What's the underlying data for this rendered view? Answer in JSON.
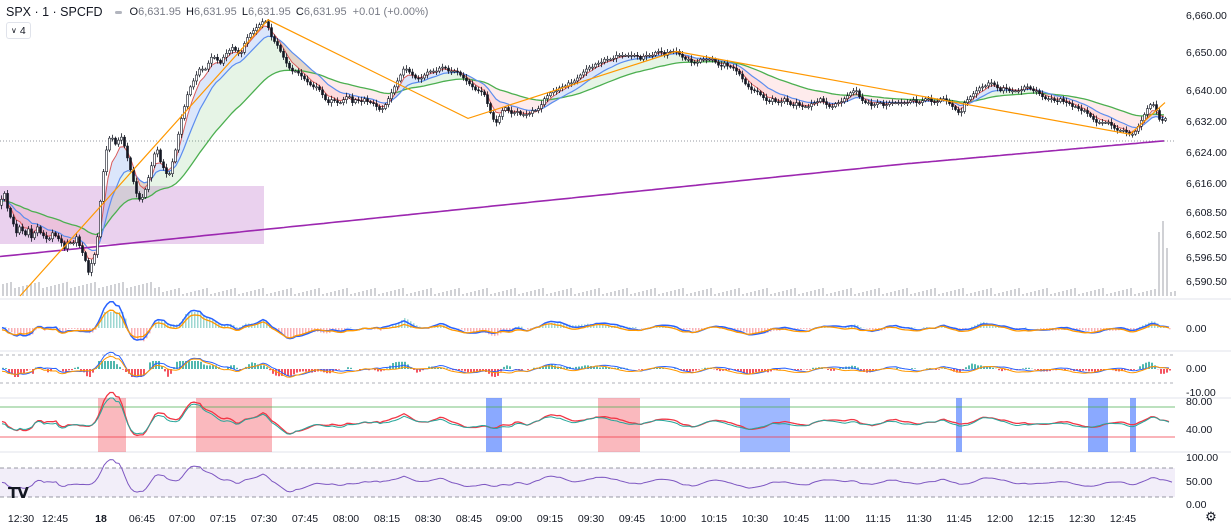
{
  "header": {
    "symbol": "SPX · 1 · SPCFD",
    "ohlc": {
      "o_label": "O",
      "o": "6,631.95",
      "h_label": "H",
      "h": "6,631.95",
      "l_label": "L",
      "l": "6,631.95",
      "c_label": "C",
      "c": "6,631.95"
    },
    "change": "+0.01 (+0.00%)"
  },
  "indicator_toggle": {
    "count": "4"
  },
  "price_axis": [
    "6,660.00",
    "6,650.00",
    "6,640.00",
    "6,632.00",
    "6,624.00",
    "6,616.00",
    "6,608.50",
    "6,602.50",
    "6,596.50",
    "6,590.50"
  ],
  "macd_axis": [
    "0.00"
  ],
  "osc_axis": [
    "0.00",
    "-10.00"
  ],
  "stoch_axis": [
    "80.00",
    "40.00"
  ],
  "rsi_axis": [
    "100.00",
    "50.00",
    "0.00"
  ],
  "time_axis": [
    "12:30",
    "12:45",
    "18",
    "06:45",
    "07:00",
    "07:15",
    "07:30",
    "07:45",
    "08:00",
    "08:15",
    "08:30",
    "08:45",
    "09:00",
    "09:15",
    "09:30",
    "09:45",
    "10:00",
    "10:15",
    "10:30",
    "10:45",
    "11:00",
    "11:15",
    "11:30",
    "11:45",
    "12:00",
    "12:15",
    "12:30",
    "12:45"
  ],
  "colors": {
    "candle": "#131722",
    "ema_blue": "#5b8def",
    "ema_red": "#f23645",
    "ema_green": "#4caf50",
    "sma_purple": "#9c27b0",
    "zigzag": "#ff9800",
    "zone": "#e1bee7"
  },
  "logo": "TV",
  "settings_icon": "gear-icon",
  "chart_data": {
    "type": "line",
    "title": "",
    "price_path": [
      [
        0,
        6612
      ],
      [
        4,
        6614
      ],
      [
        8,
        6609
      ],
      [
        12,
        6607
      ],
      [
        16,
        6604
      ],
      [
        20,
        6606
      ],
      [
        24,
        6603
      ],
      [
        28,
        6605
      ],
      [
        32,
        6602
      ],
      [
        36,
        6606
      ],
      [
        40,
        6604
      ],
      [
        44,
        6603
      ],
      [
        48,
        6602
      ],
      [
        52,
        6604
      ],
      [
        56,
        6603
      ],
      [
        60,
        6602
      ],
      [
        64,
        6600
      ],
      [
        68,
        6602
      ],
      [
        72,
        6601
      ],
      [
        76,
        6603
      ],
      [
        80,
        6600
      ],
      [
        84,
        6598
      ],
      [
        88,
        6594
      ],
      [
        92,
        6597
      ],
      [
        96,
        6600
      ],
      [
        100,
        6612
      ],
      [
        104,
        6622
      ],
      [
        108,
        6628
      ],
      [
        112,
        6628
      ],
      [
        116,
        6626
      ],
      [
        120,
        6629
      ],
      [
        124,
        6626
      ],
      [
        128,
        6622
      ],
      [
        132,
        6618
      ],
      [
        136,
        6614
      ],
      [
        140,
        6612
      ],
      [
        144,
        6614
      ],
      [
        148,
        6618
      ],
      [
        152,
        6622
      ],
      [
        156,
        6626
      ],
      [
        160,
        6622
      ],
      [
        164,
        6620
      ],
      [
        168,
        6618
      ],
      [
        172,
        6622
      ],
      [
        176,
        6626
      ],
      [
        180,
        6632
      ],
      [
        184,
        6636
      ],
      [
        188,
        6640
      ],
      [
        192,
        6642
      ],
      [
        196,
        6644
      ],
      [
        200,
        6646
      ],
      [
        204,
        6645
      ],
      [
        208,
        6647
      ],
      [
        212,
        6649
      ],
      [
        216,
        6648
      ],
      [
        220,
        6647
      ],
      [
        224,
        6649
      ],
      [
        228,
        6650
      ],
      [
        232,
        6651
      ],
      [
        236,
        6650
      ],
      [
        240,
        6649
      ],
      [
        244,
        6652
      ],
      [
        248,
        6654
      ],
      [
        252,
        6655
      ],
      [
        256,
        6656
      ],
      [
        260,
        6657
      ],
      [
        264,
        6658
      ],
      [
        268,
        6656
      ],
      [
        272,
        6653
      ],
      [
        276,
        6652
      ],
      [
        280,
        6650
      ],
      [
        284,
        6648
      ],
      [
        288,
        6646
      ],
      [
        292,
        6645
      ],
      [
        296,
        6645
      ],
      [
        300,
        6644
      ],
      [
        304,
        6643
      ],
      [
        308,
        6642
      ],
      [
        312,
        6641
      ],
      [
        316,
        6641
      ],
      [
        320,
        6640
      ],
      [
        324,
        6638
      ],
      [
        328,
        6637
      ],
      [
        332,
        6638
      ],
      [
        336,
        6637
      ],
      [
        340,
        6637
      ],
      [
        344,
        6638
      ],
      [
        348,
        6639
      ],
      [
        352,
        6637
      ],
      [
        356,
        6638
      ],
      [
        360,
        6637
      ],
      [
        364,
        6638
      ],
      [
        368,
        6637
      ],
      [
        372,
        6637
      ],
      [
        376,
        6636
      ],
      [
        380,
        6635
      ],
      [
        384,
        6636
      ],
      [
        388,
        6638
      ],
      [
        392,
        6640
      ],
      [
        396,
        6642
      ],
      [
        400,
        6644
      ],
      [
        404,
        6646
      ],
      [
        408,
        6645
      ],
      [
        412,
        6644
      ],
      [
        416,
        6643
      ],
      [
        420,
        6643
      ],
      [
        424,
        6644
      ],
      [
        428,
        6645
      ],
      [
        432,
        6645
      ],
      [
        436,
        6645
      ],
      [
        440,
        6646
      ],
      [
        444,
        6646
      ],
      [
        448,
        6645
      ],
      [
        452,
        6645
      ],
      [
        456,
        6645
      ],
      [
        460,
        6644
      ],
      [
        464,
        6643
      ],
      [
        468,
        6642
      ],
      [
        472,
        6641
      ],
      [
        476,
        6640
      ],
      [
        480,
        6640
      ],
      [
        484,
        6639
      ],
      [
        488,
        6636
      ],
      [
        492,
        6633
      ],
      [
        496,
        6632
      ],
      [
        500,
        6634
      ],
      [
        504,
        6636
      ],
      [
        508,
        6635
      ],
      [
        512,
        6634
      ],
      [
        516,
        6635
      ],
      [
        520,
        6634
      ],
      [
        524,
        6634
      ],
      [
        528,
        6634
      ],
      [
        532,
        6635
      ],
      [
        536,
        6635
      ],
      [
        540,
        6636
      ],
      [
        544,
        6638
      ],
      [
        548,
        6639
      ],
      [
        552,
        6640
      ],
      [
        556,
        6640
      ],
      [
        560,
        6641
      ],
      [
        564,
        6641
      ],
      [
        568,
        6642
      ],
      [
        572,
        6642
      ],
      [
        576,
        6643
      ],
      [
        580,
        6644
      ],
      [
        584,
        6645
      ],
      [
        588,
        6646
      ],
      [
        592,
        6646
      ],
      [
        596,
        6647
      ],
      [
        600,
        6647
      ],
      [
        604,
        6648
      ],
      [
        608,
        6648
      ],
      [
        612,
        6648
      ],
      [
        616,
        6649
      ],
      [
        620,
        6649
      ],
      [
        624,
        6649
      ],
      [
        628,
        6649
      ],
      [
        632,
        6649
      ],
      [
        636,
        6649
      ],
      [
        640,
        6648
      ],
      [
        644,
        6649
      ],
      [
        648,
        6649
      ],
      [
        652,
        6649
      ],
      [
        656,
        6650
      ],
      [
        660,
        6650
      ],
      [
        664,
        6649
      ],
      [
        668,
        6650
      ],
      [
        672,
        6650
      ],
      [
        676,
        6650
      ],
      [
        680,
        6649
      ],
      [
        684,
        6648
      ],
      [
        688,
        6648
      ],
      [
        692,
        6647
      ],
      [
        696,
        6647
      ],
      [
        700,
        6648
      ],
      [
        704,
        6648
      ],
      [
        708,
        6648
      ],
      [
        712,
        6648
      ],
      [
        716,
        6647
      ],
      [
        720,
        6646
      ],
      [
        724,
        6647
      ],
      [
        728,
        6646
      ],
      [
        732,
        6646
      ],
      [
        736,
        6645
      ],
      [
        740,
        6644
      ],
      [
        744,
        6642
      ],
      [
        748,
        6641
      ],
      [
        752,
        6640
      ],
      [
        756,
        6640
      ],
      [
        760,
        6639
      ],
      [
        764,
        6638
      ],
      [
        768,
        6637
      ],
      [
        772,
        6638
      ],
      [
        776,
        6637
      ],
      [
        780,
        6637
      ],
      [
        784,
        6638
      ],
      [
        788,
        6637
      ],
      [
        792,
        6636
      ],
      [
        796,
        6637
      ],
      [
        800,
        6636
      ],
      [
        804,
        6636
      ],
      [
        808,
        6636
      ],
      [
        812,
        6637
      ],
      [
        816,
        6637
      ],
      [
        820,
        6638
      ],
      [
        824,
        6637
      ],
      [
        828,
        6636
      ],
      [
        832,
        6636
      ],
      [
        836,
        6637
      ],
      [
        840,
        6637
      ],
      [
        844,
        6638
      ],
      [
        848,
        6639
      ],
      [
        852,
        6640
      ],
      [
        856,
        6640
      ],
      [
        860,
        6638
      ],
      [
        864,
        6637
      ],
      [
        868,
        6637
      ],
      [
        872,
        6636
      ],
      [
        876,
        6637
      ],
      [
        880,
        6637
      ],
      [
        884,
        6636
      ],
      [
        888,
        6637
      ],
      [
        892,
        6637
      ],
      [
        896,
        6637
      ],
      [
        900,
        6637
      ],
      [
        904,
        6637
      ],
      [
        908,
        6637
      ],
      [
        912,
        6638
      ],
      [
        916,
        6637
      ],
      [
        920,
        6637
      ],
      [
        924,
        6638
      ],
      [
        928,
        6638
      ],
      [
        932,
        6637
      ],
      [
        936,
        6637
      ],
      [
        940,
        6638
      ],
      [
        944,
        6638
      ],
      [
        948,
        6637
      ],
      [
        952,
        6636
      ],
      [
        956,
        6635
      ],
      [
        960,
        6634
      ],
      [
        964,
        6637
      ],
      [
        968,
        6638
      ],
      [
        972,
        6639
      ],
      [
        976,
        6640
      ],
      [
        980,
        6641
      ],
      [
        984,
        6641
      ],
      [
        988,
        6642
      ],
      [
        992,
        6642
      ],
      [
        996,
        6641
      ],
      [
        1000,
        6640
      ],
      [
        1004,
        6641
      ],
      [
        1008,
        6640
      ],
      [
        1012,
        6640
      ],
      [
        1016,
        6640
      ],
      [
        1020,
        6640
      ],
      [
        1024,
        6641
      ],
      [
        1028,
        6641
      ],
      [
        1032,
        6640
      ],
      [
        1036,
        6640
      ],
      [
        1040,
        6639
      ],
      [
        1044,
        6638
      ],
      [
        1048,
        6638
      ],
      [
        1052,
        6638
      ],
      [
        1056,
        6637
      ],
      [
        1060,
        6638
      ],
      [
        1064,
        6637
      ],
      [
        1068,
        6637
      ],
      [
        1072,
        6636
      ],
      [
        1076,
        6636
      ],
      [
        1080,
        6635
      ],
      [
        1084,
        6635
      ],
      [
        1088,
        6634
      ],
      [
        1092,
        6633
      ],
      [
        1096,
        6632
      ],
      [
        1100,
        6632
      ],
      [
        1104,
        6632
      ],
      [
        1108,
        6632
      ],
      [
        1112,
        6631
      ],
      [
        1116,
        6630
      ],
      [
        1120,
        6630
      ],
      [
        1124,
        6630
      ],
      [
        1128,
        6629
      ],
      [
        1132,
        6629
      ],
      [
        1136,
        6630
      ],
      [
        1140,
        6632
      ],
      [
        1144,
        6634
      ],
      [
        1148,
        6636
      ],
      [
        1152,
        6637
      ],
      [
        1156,
        6635
      ],
      [
        1160,
        6632
      ],
      [
        1164,
        6633
      ]
    ],
    "ylim": [
      6588,
      6662
    ]
  }
}
